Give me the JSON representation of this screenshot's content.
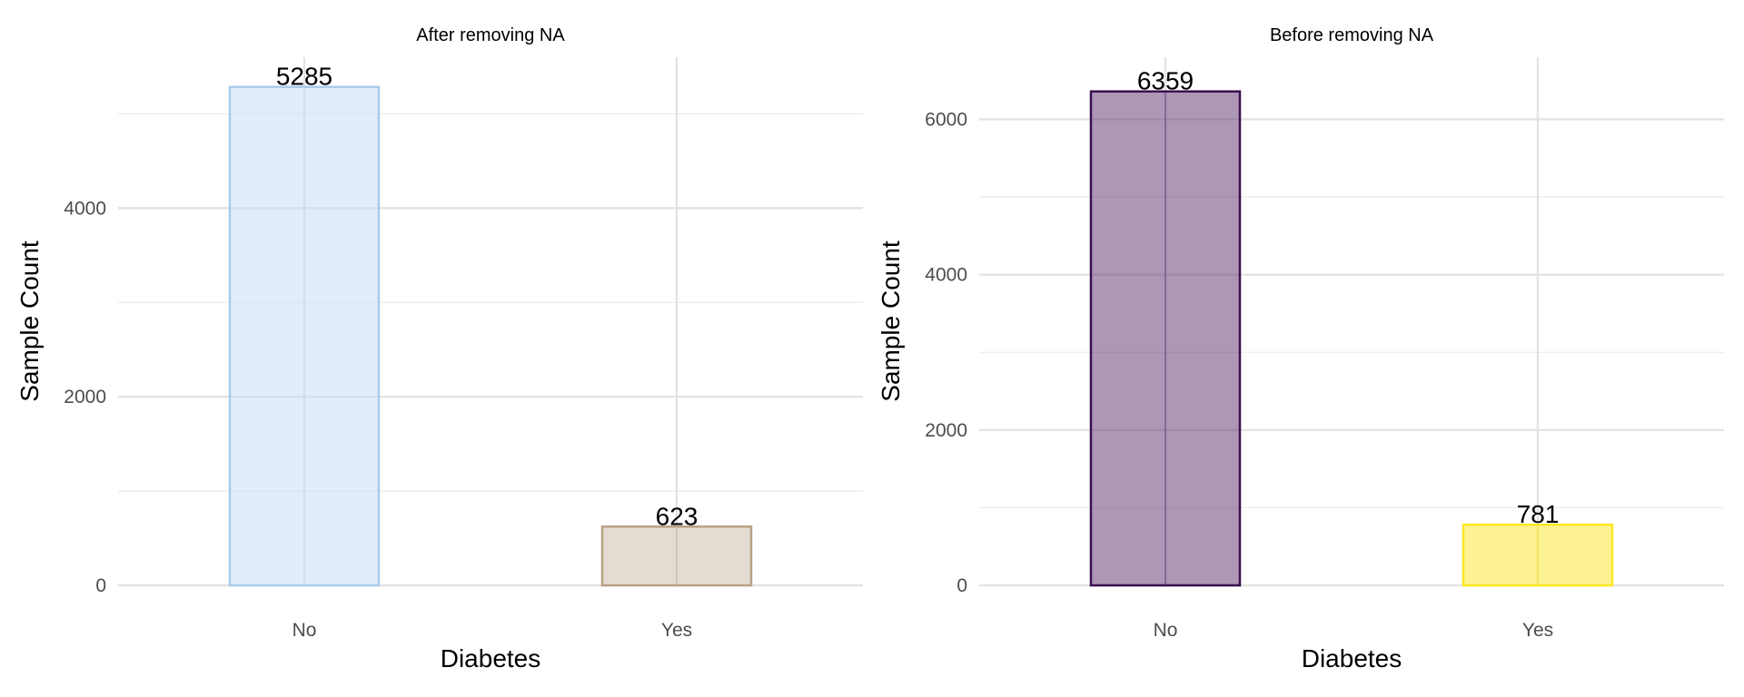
{
  "chart_data": [
    {
      "type": "bar",
      "title": "After removing NA",
      "xlabel": "Diabetes",
      "ylabel": "Sample Count",
      "categories": [
        "No",
        "Yes"
      ],
      "values": [
        5285,
        623
      ],
      "data_labels": [
        "5285",
        "623"
      ],
      "y_ticks": [
        "0",
        "2000",
        "4000"
      ],
      "ylim": [
        0,
        5600
      ],
      "grid": true,
      "bar_fill": [
        "#c6dcf3",
        "#c9b9a3"
      ],
      "bar_stroke": [
        "#a9cbe9",
        "#b8a285"
      ]
    },
    {
      "type": "bar",
      "title": "Before removing NA",
      "xlabel": "Diabetes",
      "ylabel": "Sample Count",
      "categories": [
        "No",
        "Yes"
      ],
      "values": [
        6359,
        781
      ],
      "data_labels": [
        "6359",
        "781"
      ],
      "y_ticks": [
        "0",
        "2000",
        "4000",
        "6000"
      ],
      "ylim": [
        0,
        6800
      ],
      "grid": true,
      "bar_fill": [
        "#5c2d6e",
        "#fde725"
      ],
      "bar_stroke": [
        "#3b0f4f",
        "#fde725"
      ]
    }
  ]
}
